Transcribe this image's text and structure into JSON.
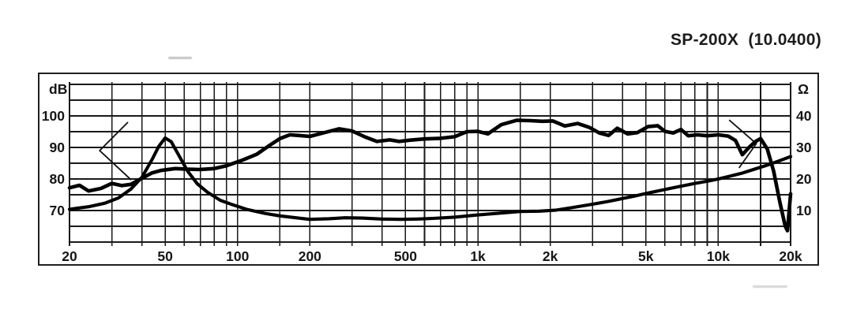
{
  "header": {
    "title": "SP-200X  (10.0400)"
  },
  "chart_data": {
    "type": "line",
    "title": "SP-200X  (10.0400)",
    "description": "Loudspeaker frequency response (dB) and impedance (Ohm) vs frequency (Hz), log x-axis",
    "grid": true,
    "x_axis": {
      "scale": "log",
      "min": 20,
      "max": 20000,
      "ticks": [
        {
          "f": 20,
          "label": "20"
        },
        {
          "f": 50,
          "label": "50"
        },
        {
          "f": 100,
          "label": "100"
        },
        {
          "f": 200,
          "label": "200"
        },
        {
          "f": 500,
          "label": "500"
        },
        {
          "f": 1000,
          "label": "1k"
        },
        {
          "f": 2000,
          "label": "2k"
        },
        {
          "f": 5000,
          "label": "5k"
        },
        {
          "f": 10000,
          "label": "10k"
        },
        {
          "f": 20000,
          "label": "20k"
        }
      ],
      "gridline_freqs": [
        20,
        30,
        40,
        50,
        60,
        70,
        80,
        90,
        100,
        150,
        200,
        300,
        400,
        500,
        600,
        700,
        800,
        900,
        1000,
        1500,
        2000,
        3000,
        4000,
        5000,
        6000,
        7000,
        8000,
        9000,
        10000,
        15000,
        20000
      ]
    },
    "y_axis_left": {
      "unit_label": "dB",
      "min": 60,
      "max": 110,
      "gridline_step": 5,
      "ticks": [
        {
          "v": 100,
          "label": "100"
        },
        {
          "v": 90,
          "label": "90"
        },
        {
          "v": 80,
          "label": "80"
        },
        {
          "v": 70,
          "label": "70"
        }
      ]
    },
    "y_axis_right": {
      "unit_label": "Ω",
      "min": 0,
      "max": 50,
      "offset_vs_left": 60,
      "ticks": [
        {
          "v": 40,
          "label": "40"
        },
        {
          "v": 30,
          "label": "30"
        },
        {
          "v": 20,
          "label": "20"
        },
        {
          "v": 10,
          "label": "10"
        }
      ]
    },
    "series": [
      {
        "name": "sound-pressure-level",
        "axis": "left",
        "unit": "dB",
        "stroke_width": 4.6,
        "points": [
          [
            20,
            77.2
          ],
          [
            22,
            78.0
          ],
          [
            24,
            76.2
          ],
          [
            27,
            77.0
          ],
          [
            30,
            78.6
          ],
          [
            33,
            77.9
          ],
          [
            36,
            78.3
          ],
          [
            40,
            80.2
          ],
          [
            44,
            81.9
          ],
          [
            48,
            82.7
          ],
          [
            55,
            83.3
          ],
          [
            62,
            83.1
          ],
          [
            70,
            83.0
          ],
          [
            80,
            83.3
          ],
          [
            90,
            84.2
          ],
          [
            105,
            86.0
          ],
          [
            120,
            87.8
          ],
          [
            135,
            90.5
          ],
          [
            150,
            92.8
          ],
          [
            165,
            94.0
          ],
          [
            180,
            93.8
          ],
          [
            200,
            93.5
          ],
          [
            230,
            94.7
          ],
          [
            265,
            95.9
          ],
          [
            300,
            95.2
          ],
          [
            340,
            93.3
          ],
          [
            380,
            91.9
          ],
          [
            430,
            92.4
          ],
          [
            470,
            91.9
          ],
          [
            520,
            92.3
          ],
          [
            600,
            92.7
          ],
          [
            700,
            92.9
          ],
          [
            800,
            93.4
          ],
          [
            900,
            95.0
          ],
          [
            1000,
            95.1
          ],
          [
            1100,
            94.3
          ],
          [
            1250,
            97.2
          ],
          [
            1450,
            98.6
          ],
          [
            1650,
            98.5
          ],
          [
            1850,
            98.3
          ],
          [
            2050,
            98.4
          ],
          [
            2300,
            96.8
          ],
          [
            2600,
            97.6
          ],
          [
            2900,
            96.4
          ],
          [
            3200,
            94.6
          ],
          [
            3500,
            93.8
          ],
          [
            3800,
            96.1
          ],
          [
            4200,
            94.3
          ],
          [
            4600,
            94.7
          ],
          [
            5100,
            96.6
          ],
          [
            5600,
            96.9
          ],
          [
            6000,
            95.1
          ],
          [
            6500,
            94.6
          ],
          [
            7000,
            95.7
          ],
          [
            7500,
            93.7
          ],
          [
            8200,
            94.0
          ],
          [
            9000,
            93.7
          ],
          [
            10000,
            94.0
          ],
          [
            11000,
            93.6
          ],
          [
            11800,
            92.2
          ],
          [
            12600,
            87.7
          ],
          [
            13500,
            90.2
          ],
          [
            14300,
            91.9
          ],
          [
            15000,
            92.8
          ],
          [
            16000,
            89.5
          ],
          [
            17000,
            82.5
          ],
          [
            18000,
            73.0
          ],
          [
            19000,
            65.0
          ],
          [
            19400,
            63.6
          ],
          [
            20000,
            75.3
          ]
        ]
      },
      {
        "name": "impedance",
        "axis": "right",
        "unit": "Ω",
        "stroke_width": 4.1,
        "points": [
          [
            20,
            10.4
          ],
          [
            24,
            11.2
          ],
          [
            28,
            12.3
          ],
          [
            32,
            14.0
          ],
          [
            36,
            16.8
          ],
          [
            40,
            20.5
          ],
          [
            44,
            26.0
          ],
          [
            47,
            30.3
          ],
          [
            50,
            33.0
          ],
          [
            53,
            31.8
          ],
          [
            57,
            27.5
          ],
          [
            62,
            22.5
          ],
          [
            68,
            18.5
          ],
          [
            75,
            15.8
          ],
          [
            85,
            13.2
          ],
          [
            95,
            11.9
          ],
          [
            110,
            10.3
          ],
          [
            130,
            9.1
          ],
          [
            150,
            8.3
          ],
          [
            175,
            7.7
          ],
          [
            200,
            7.2
          ],
          [
            240,
            7.4
          ],
          [
            280,
            7.7
          ],
          [
            330,
            7.6
          ],
          [
            400,
            7.3
          ],
          [
            480,
            7.2
          ],
          [
            560,
            7.3
          ],
          [
            650,
            7.5
          ],
          [
            800,
            7.9
          ],
          [
            1000,
            8.6
          ],
          [
            1250,
            9.2
          ],
          [
            1500,
            9.7
          ],
          [
            1800,
            9.8
          ],
          [
            2100,
            10.1
          ],
          [
            2500,
            11.0
          ],
          [
            3000,
            12.0
          ],
          [
            3500,
            12.9
          ],
          [
            4000,
            13.8
          ],
          [
            4500,
            14.6
          ],
          [
            5000,
            15.4
          ],
          [
            5600,
            16.2
          ],
          [
            6300,
            17.0
          ],
          [
            7100,
            17.8
          ],
          [
            8000,
            18.6
          ],
          [
            9000,
            19.3
          ],
          [
            10000,
            20.0
          ],
          [
            11200,
            20.9
          ],
          [
            12500,
            21.8
          ],
          [
            14000,
            23.0
          ],
          [
            16000,
            24.4
          ],
          [
            18000,
            25.8
          ],
          [
            20000,
            27.1
          ]
        ]
      }
    ],
    "annotations": {
      "range_markers": [
        {
          "name": "low-frequency-angle-marker",
          "shape": "<",
          "points": [
            [
              35,
              98.0
            ],
            [
              26.7,
              89.0
            ],
            [
              36.1,
              79.7
            ]
          ]
        },
        {
          "name": "high-frequency-angle-marker",
          "shape": ">",
          "points": [
            [
              11100,
              98.7
            ],
            [
              14400,
              91.2
            ],
            [
              12200,
              83.5
            ]
          ]
        }
      ]
    }
  }
}
